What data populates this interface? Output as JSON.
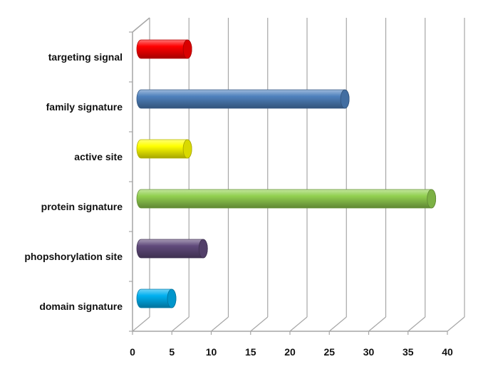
{
  "chart_data": {
    "type": "bar",
    "orientation": "horizontal",
    "style": "3d-cylinder",
    "categories": [
      "targeting signal",
      "family signature",
      "active site",
      "protein signature",
      "phopshorylation site",
      "domain signature"
    ],
    "values": [
      6,
      26,
      6,
      37,
      8,
      4
    ],
    "colors": [
      "#ff0000",
      "#4f81bd",
      "#ffff00",
      "#92d050",
      "#604a7b",
      "#00b0f0"
    ],
    "xlim": [
      0,
      40
    ],
    "xticks": [
      0,
      5,
      10,
      15,
      20,
      25,
      30,
      35,
      40
    ],
    "title": "",
    "xlabel": "",
    "ylabel": "",
    "grid": true,
    "legend": "none"
  }
}
